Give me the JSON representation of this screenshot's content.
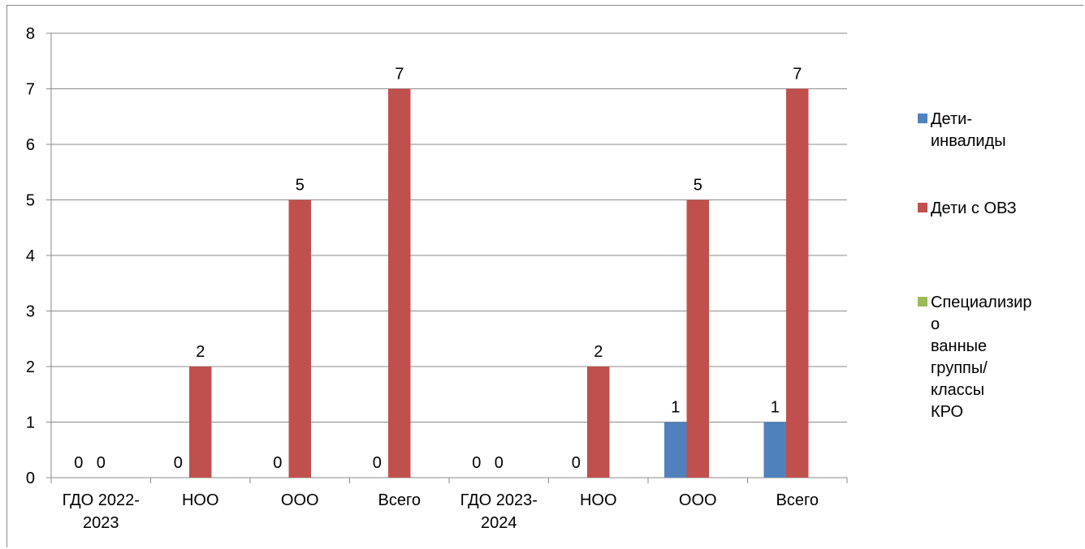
{
  "chart_data": {
    "type": "bar",
    "title": "",
    "xlabel": "",
    "ylabel": "",
    "ylim": [
      0,
      8
    ],
    "yticks": [
      0,
      1,
      2,
      3,
      4,
      5,
      6,
      7,
      8
    ],
    "grid": true,
    "legend_position": "right",
    "categories": [
      [
        "ГДО 2022-",
        "2023"
      ],
      [
        "НОО"
      ],
      [
        "ООО"
      ],
      [
        "Всего"
      ],
      [
        "ГДО 2023-",
        "2024"
      ],
      [
        "НОО"
      ],
      [
        "ООО"
      ],
      [
        "Всего"
      ]
    ],
    "series": [
      {
        "name": [
          "Дети-",
          "инвалиды"
        ],
        "color": "#4f81bd",
        "values": [
          0,
          0,
          0,
          0,
          0,
          0,
          1,
          1
        ]
      },
      {
        "name": [
          "Дети с ОВЗ"
        ],
        "color": "#c0504d",
        "values": [
          0,
          2,
          5,
          7,
          0,
          2,
          5,
          7
        ]
      },
      {
        "name": [
          "Специализиро",
          "ванные",
          "группы/классы",
          "КРО"
        ],
        "color": "#9bbb59",
        "values": [
          null,
          null,
          null,
          null,
          null,
          null,
          null,
          null
        ]
      }
    ]
  }
}
